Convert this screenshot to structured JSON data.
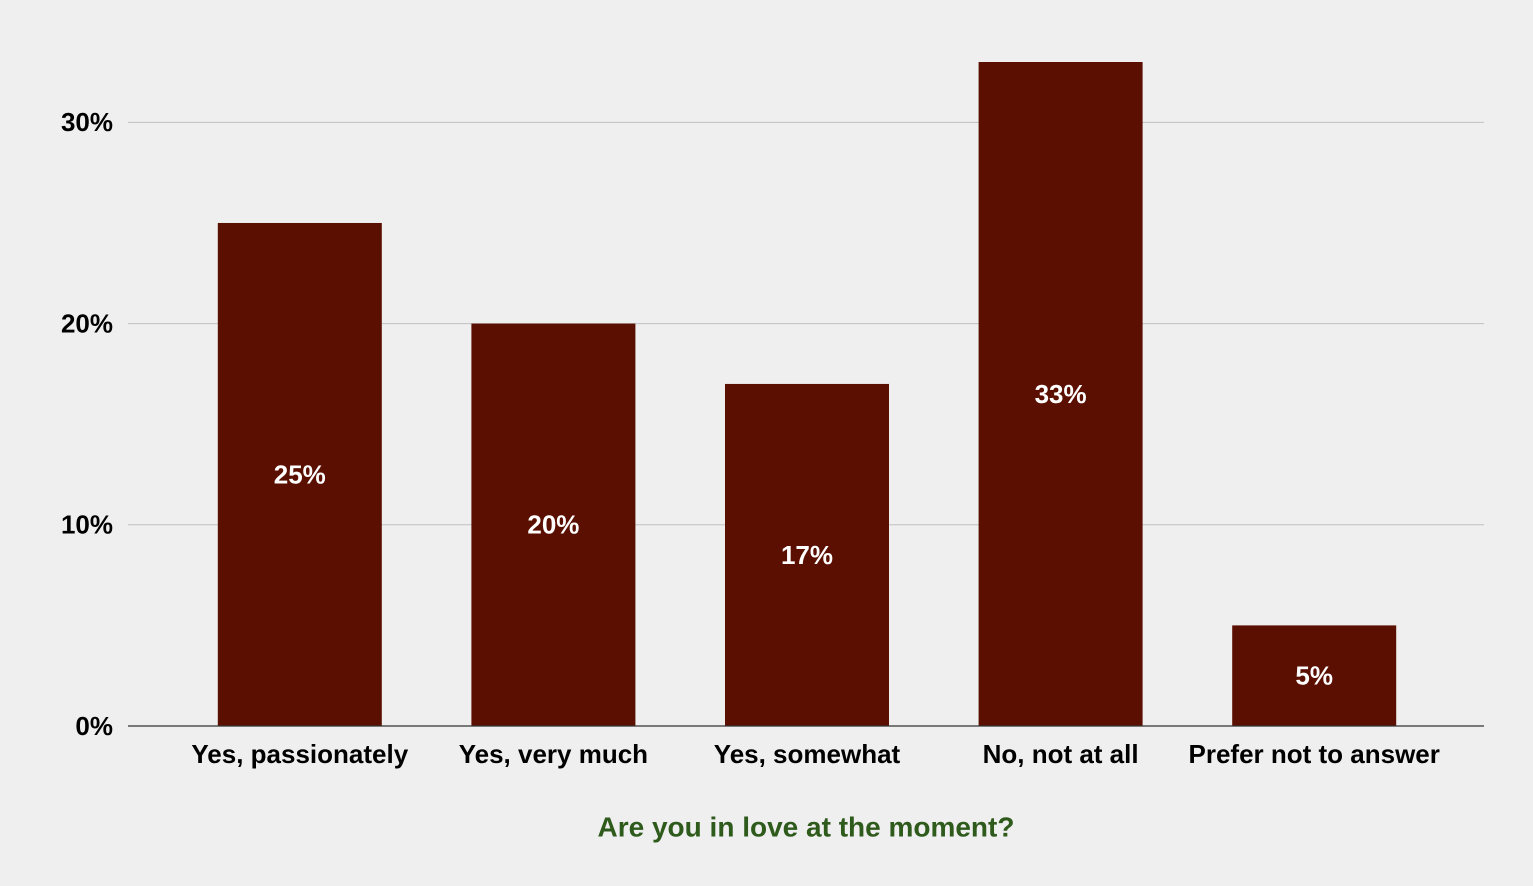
{
  "chart_data": {
    "type": "bar",
    "x_label": "Are you in love at the moment?",
    "categories": [
      "Yes, passionately",
      "Yes, very much",
      "Yes, somewhat",
      "No, not at all",
      "Prefer not to answer"
    ],
    "values": [
      25,
      20,
      17,
      33,
      5
    ],
    "value_labels": [
      "25%",
      "20%",
      "17%",
      "33%",
      "5%"
    ],
    "color": "#5a0f00",
    "ylim": [
      0,
      33
    ],
    "yticks": [
      {
        "value": 0,
        "label": "0%"
      },
      {
        "value": 10,
        "label": "10%"
      },
      {
        "value": 20,
        "label": "20%"
      },
      {
        "value": 30,
        "label": "30%"
      }
    ],
    "grid": true
  }
}
